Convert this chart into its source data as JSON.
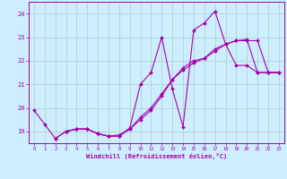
{
  "background_color": "#cceeff",
  "grid_color": "#aacccc",
  "line_color": "#aa00aa",
  "xlabel": "Windchill (Refroidissement éolien,°C)",
  "xlim": [
    -0.5,
    23.5
  ],
  "ylim": [
    18.5,
    24.5
  ],
  "yticks": [
    19,
    20,
    21,
    22,
    23,
    24
  ],
  "xticks": [
    0,
    1,
    2,
    3,
    4,
    5,
    6,
    7,
    8,
    9,
    10,
    11,
    12,
    13,
    14,
    15,
    16,
    17,
    18,
    19,
    20,
    21,
    22,
    23
  ],
  "series": [
    {
      "x": [
        0,
        1,
        2,
        3,
        4,
        5,
        6,
        7,
        8,
        9,
        10,
        11,
        12,
        13,
        14,
        15,
        16,
        17,
        18,
        19,
        20,
        21,
        22,
        23
      ],
      "y": [
        19.9,
        19.3,
        18.7,
        19.0,
        19.1,
        19.1,
        18.9,
        18.8,
        18.8,
        19.15,
        21.0,
        21.5,
        23.0,
        20.8,
        19.2,
        23.3,
        23.6,
        24.1,
        22.7,
        21.8,
        21.8,
        21.5,
        21.5,
        21.5
      ]
    },
    {
      "x": [
        2,
        3,
        4,
        5,
        6,
        7,
        8,
        9,
        10,
        11,
        12,
        13,
        14,
        15,
        16,
        17,
        18,
        19,
        20,
        21,
        22,
        23
      ],
      "y": [
        18.7,
        19.0,
        19.1,
        19.1,
        18.9,
        18.8,
        18.85,
        19.1,
        19.5,
        19.9,
        20.5,
        21.2,
        21.6,
        21.9,
        22.1,
        22.5,
        22.7,
        22.85,
        22.9,
        21.5,
        21.5,
        21.5
      ]
    },
    {
      "x": [
        3,
        4,
        5,
        6,
        7,
        8,
        9,
        10,
        11,
        12,
        13,
        14,
        15,
        16,
        17,
        18,
        19,
        20,
        21,
        22,
        23
      ],
      "y": [
        19.0,
        19.1,
        19.1,
        18.9,
        18.8,
        18.8,
        19.1,
        19.6,
        20.0,
        20.6,
        21.2,
        21.7,
        22.0,
        22.1,
        22.4,
        22.7,
        22.85,
        22.85,
        22.85,
        21.5,
        21.5
      ]
    }
  ]
}
